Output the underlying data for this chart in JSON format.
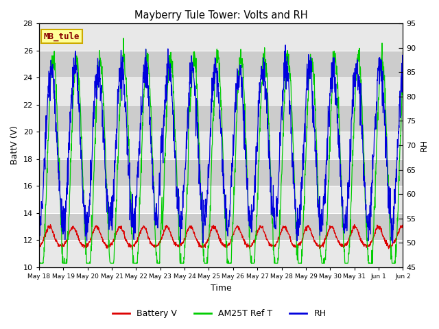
{
  "title": "Mayberry Tule Tower: Volts and RH",
  "xlabel": "Time",
  "ylabel_left": "BattV (V)",
  "ylabel_right": "RH",
  "ylim_left": [
    10,
    28
  ],
  "ylim_right": [
    45,
    95
  ],
  "yticks_left": [
    10,
    12,
    14,
    16,
    18,
    20,
    22,
    24,
    26,
    28
  ],
  "yticks_right": [
    45,
    50,
    55,
    60,
    65,
    70,
    75,
    80,
    85,
    90,
    95
  ],
  "xtick_labels": [
    "May 18",
    "May 19",
    "May 20",
    "May 21",
    "May 22",
    "May 23",
    "May 24",
    "May 25",
    "May 26",
    "May 27",
    "May 28",
    "May 29",
    "May 30",
    "May 31",
    "Jun 1",
    "Jun 2"
  ],
  "legend_labels": [
    "Battery V",
    "AM25T Ref T",
    "RH"
  ],
  "legend_colors": [
    "#dd0000",
    "#00cc00",
    "#0000dd"
  ],
  "color_battv": "#dd0000",
  "color_am25t": "#00cc00",
  "color_rh": "#0000dd",
  "station_label": "MB_tule",
  "station_box_color": "#ffff99",
  "station_box_edge": "#ccaa00",
  "bg_color": "#d0d0d0",
  "band_color_dark": "#cccccc",
  "band_color_light": "#e8e8e8",
  "n_points": 1500,
  "days": 15.5,
  "seed": 7
}
